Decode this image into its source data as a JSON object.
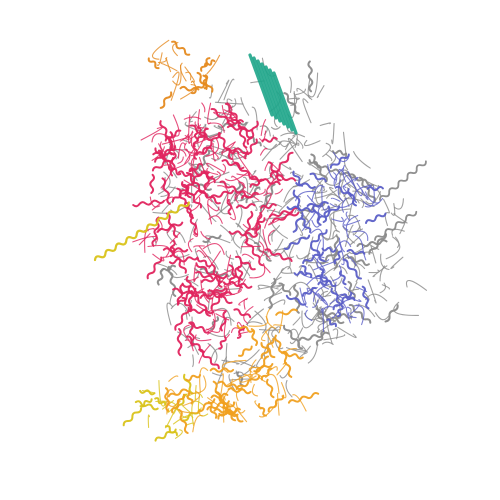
{
  "image": {
    "subject": "protein-complex-cartoon",
    "background_color": "#ffffff"
  },
  "chains": [
    {
      "id": "chain-red",
      "color": "#e0245e"
    },
    {
      "id": "chain-blue",
      "color": "#5b5fc7"
    },
    {
      "id": "chain-gray",
      "color": "#8a8a8a"
    },
    {
      "id": "chain-orange",
      "color": "#e58a1f"
    },
    {
      "id": "chain-yellow",
      "color": "#d9c31a"
    },
    {
      "id": "chain-teal",
      "color": "#1ea58a"
    },
    {
      "id": "chain-gold",
      "color": "#f0a020"
    }
  ]
}
